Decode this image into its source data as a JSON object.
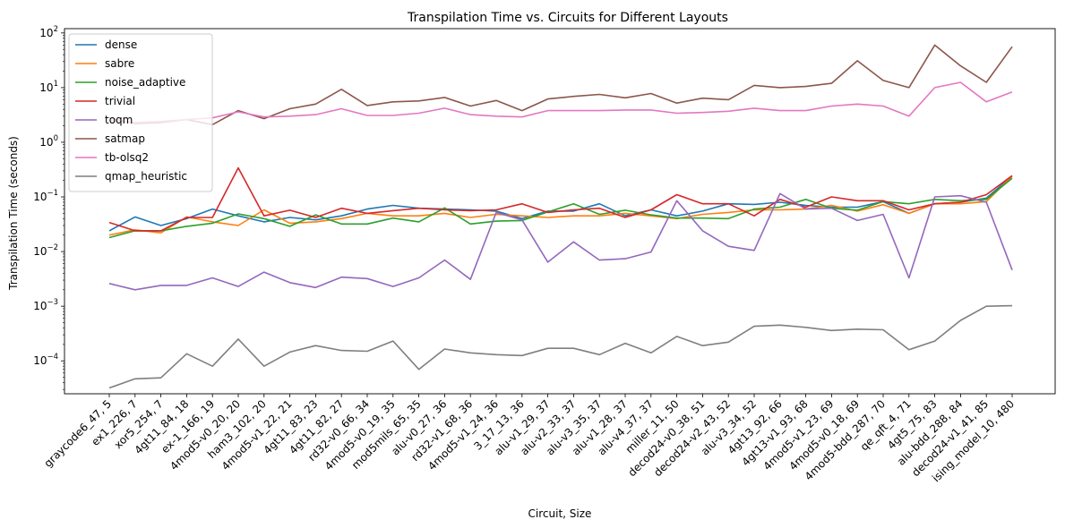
{
  "chart_data": {
    "type": "line",
    "title": "Transpilation Time vs. Circuits for Different Layouts",
    "xlabel": "Circuit, Size",
    "ylabel": "Transpilation Time (seconds)",
    "yscale": "log",
    "ylim": [
      2.5e-05,
      120
    ],
    "yticks": [
      {
        "value": 0.0001,
        "base": "10",
        "exp": "−4"
      },
      {
        "value": 0.001,
        "base": "10",
        "exp": "−3"
      },
      {
        "value": 0.01,
        "base": "10",
        "exp": "−2"
      },
      {
        "value": 0.1,
        "base": "10",
        "exp": "−1"
      },
      {
        "value": 1,
        "base": "10",
        "exp": "0"
      },
      {
        "value": 10,
        "base": "10",
        "exp": "1"
      },
      {
        "value": 100,
        "base": "10",
        "exp": "2"
      }
    ],
    "grid": false,
    "legend_position": "top-left",
    "categories": [
      "graycode6_47, 5",
      "ex1_226, 7",
      "xor5_254, 7",
      "4gt11_84, 18",
      "ex-1_166, 19",
      "4mod5-v0_20, 20",
      "ham3_102, 20",
      "4mod5-v1_22, 21",
      "4gt11_83, 23",
      "4gt11_82, 27",
      "rd32-v0_66, 34",
      "4mod5-v0_19, 35",
      "mod5mils_65, 35",
      "alu-v0_27, 36",
      "rd32-v1_68, 36",
      "4mod5-v1_24, 36",
      "3_17_13, 36",
      "alu-v1_29, 37",
      "alu-v2_33, 37",
      "alu-v3_35, 37",
      "alu-v1_28, 37",
      "alu-v4_37, 37",
      "miller_11, 50",
      "decod24-v0_38, 51",
      "decod24-v2_43, 52",
      "alu-v3_34, 52",
      "4gt13_92, 66",
      "4gt13-v1_93, 68",
      "4mod5-v1_23, 69",
      "4mod5-v0_18, 69",
      "4mod5-bdd_287, 70",
      "qe_qft_4, 71",
      "4gt5_75, 83",
      "alu-bdd_288, 84",
      "decod24-v1_41, 85",
      "ising_model_10, 480"
    ],
    "series": [
      {
        "name": "dense",
        "color": "#1f77b4",
        "values": [
          0.024,
          0.043,
          0.03,
          0.04,
          0.06,
          0.045,
          0.035,
          0.042,
          0.038,
          0.045,
          0.06,
          0.07,
          0.062,
          0.06,
          0.058,
          0.055,
          0.04,
          0.055,
          0.055,
          0.075,
          0.045,
          0.058,
          0.045,
          0.055,
          0.075,
          0.073,
          0.08,
          0.07,
          0.065,
          0.065,
          0.082,
          0.05,
          0.075,
          0.08,
          0.095,
          0.24
        ]
      },
      {
        "name": "sabre",
        "color": "#ff7f0e",
        "values": [
          0.02,
          0.025,
          0.022,
          0.043,
          0.035,
          0.03,
          0.058,
          0.033,
          0.035,
          0.04,
          0.05,
          0.045,
          0.045,
          0.05,
          0.042,
          0.048,
          0.045,
          0.042,
          0.045,
          0.045,
          0.05,
          0.045,
          0.04,
          0.048,
          0.052,
          0.058,
          0.058,
          0.06,
          0.07,
          0.055,
          0.072,
          0.05,
          0.075,
          0.075,
          0.082,
          0.24
        ]
      },
      {
        "name": "noise_adaptive",
        "color": "#2ca02c",
        "values": [
          0.018,
          0.024,
          0.024,
          0.029,
          0.033,
          0.049,
          0.04,
          0.029,
          0.047,
          0.032,
          0.032,
          0.041,
          0.035,
          0.063,
          0.032,
          0.036,
          0.037,
          0.053,
          0.075,
          0.048,
          0.057,
          0.047,
          0.041,
          0.041,
          0.04,
          0.06,
          0.065,
          0.09,
          0.062,
          0.057,
          0.082,
          0.075,
          0.09,
          0.085,
          0.09,
          0.22
        ]
      },
      {
        "name": "trivial",
        "color": "#d62728",
        "values": [
          0.034,
          0.024,
          0.024,
          0.042,
          0.042,
          0.34,
          0.045,
          0.057,
          0.042,
          0.062,
          0.05,
          0.056,
          0.062,
          0.058,
          0.056,
          0.058,
          0.075,
          0.052,
          0.058,
          0.062,
          0.042,
          0.058,
          0.11,
          0.075,
          0.075,
          0.045,
          0.09,
          0.065,
          0.1,
          0.085,
          0.085,
          0.058,
          0.075,
          0.08,
          0.11,
          0.245
        ]
      },
      {
        "name": "toqm",
        "color": "#9467bd",
        "values": [
          0.0026,
          0.002,
          0.0024,
          0.0024,
          0.0033,
          0.0023,
          0.0042,
          0.0027,
          0.0022,
          0.0034,
          0.0032,
          0.0023,
          0.0033,
          0.007,
          0.0031,
          0.052,
          0.038,
          0.0064,
          0.015,
          0.007,
          0.0074,
          0.0098,
          0.085,
          0.024,
          0.0125,
          0.0105,
          0.115,
          0.06,
          0.062,
          0.037,
          0.048,
          0.0033,
          0.1,
          0.105,
          0.08,
          0.0046
        ]
      },
      {
        "name": "satmap",
        "color": "#8c564b",
        "values": [
          2.8,
          2.2,
          2.3,
          2.6,
          2.1,
          3.8,
          2.7,
          4.1,
          5.0,
          9.3,
          4.7,
          5.5,
          5.7,
          6.6,
          4.6,
          5.8,
          3.8,
          6.2,
          6.9,
          7.5,
          6.5,
          7.8,
          5.2,
          6.4,
          6.0,
          11.0,
          10.0,
          10.5,
          12.0,
          31.0,
          13.5,
          10.0,
          60.0,
          25.0,
          12.5,
          56.0
        ]
      },
      {
        "name": "tb-olsq2",
        "color": "#e377c2",
        "values": [
          2.5,
          2.3,
          2.4,
          2.6,
          2.8,
          3.6,
          2.9,
          3.0,
          3.2,
          4.1,
          3.1,
          3.1,
          3.4,
          4.2,
          3.2,
          3.0,
          2.9,
          3.8,
          3.8,
          3.8,
          3.9,
          3.9,
          3.4,
          3.5,
          3.7,
          4.2,
          3.8,
          3.8,
          4.6,
          5.0,
          4.6,
          3.0,
          10.0,
          12.5,
          5.5,
          8.3
        ]
      },
      {
        "name": "qmap_heuristic",
        "color": "#7f7f7f",
        "values": [
          3.2e-05,
          4.7e-05,
          4.9e-05,
          0.000135,
          8e-05,
          0.00025,
          8e-05,
          0.000145,
          0.00019,
          0.000155,
          0.00015,
          0.00023,
          7e-05,
          0.000165,
          0.00014,
          0.00013,
          0.000125,
          0.00017,
          0.00017,
          0.00013,
          0.00021,
          0.00014,
          0.00028,
          0.00019,
          0.00022,
          0.00043,
          0.00045,
          0.00041,
          0.00036,
          0.00038,
          0.00037,
          0.00016,
          0.00023,
          0.00055,
          0.001,
          0.00102
        ]
      }
    ]
  }
}
